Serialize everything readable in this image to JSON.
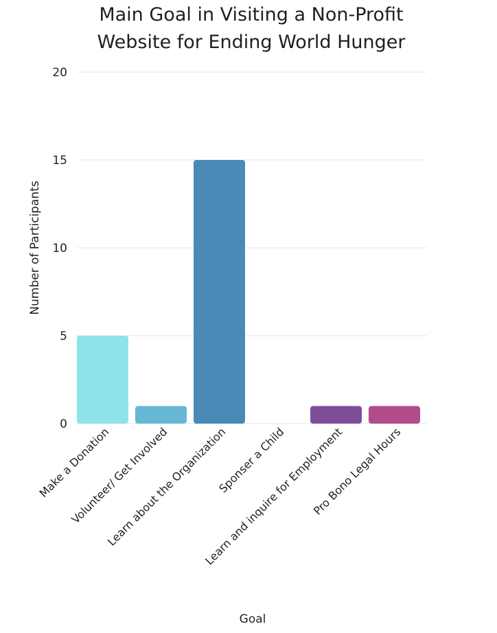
{
  "chart_data": {
    "type": "bar",
    "title_lines": [
      "Main Goal in Visiting a Non-Profit",
      "Website for Ending World Hunger"
    ],
    "xlabel": "Goal",
    "ylabel": "Number of Participants",
    "ylim": [
      0,
      20
    ],
    "yticks": [
      "0",
      "5",
      "10",
      "15",
      "20"
    ],
    "grid": true,
    "legend": "none",
    "categories": [
      "Make a Donation",
      "Volunteer/ Get Involved",
      "Learn about the Organization",
      "Sponser a Child",
      "Learn and inquire for Employment",
      "Pro Bono Legal Hours"
    ],
    "values": [
      5,
      1,
      15,
      0,
      1,
      1
    ],
    "colors": [
      "#8ee3e8",
      "#67b8d6",
      "#4a8ab7",
      "#5f6fae",
      "#7f4c9a",
      "#b24b89"
    ]
  }
}
